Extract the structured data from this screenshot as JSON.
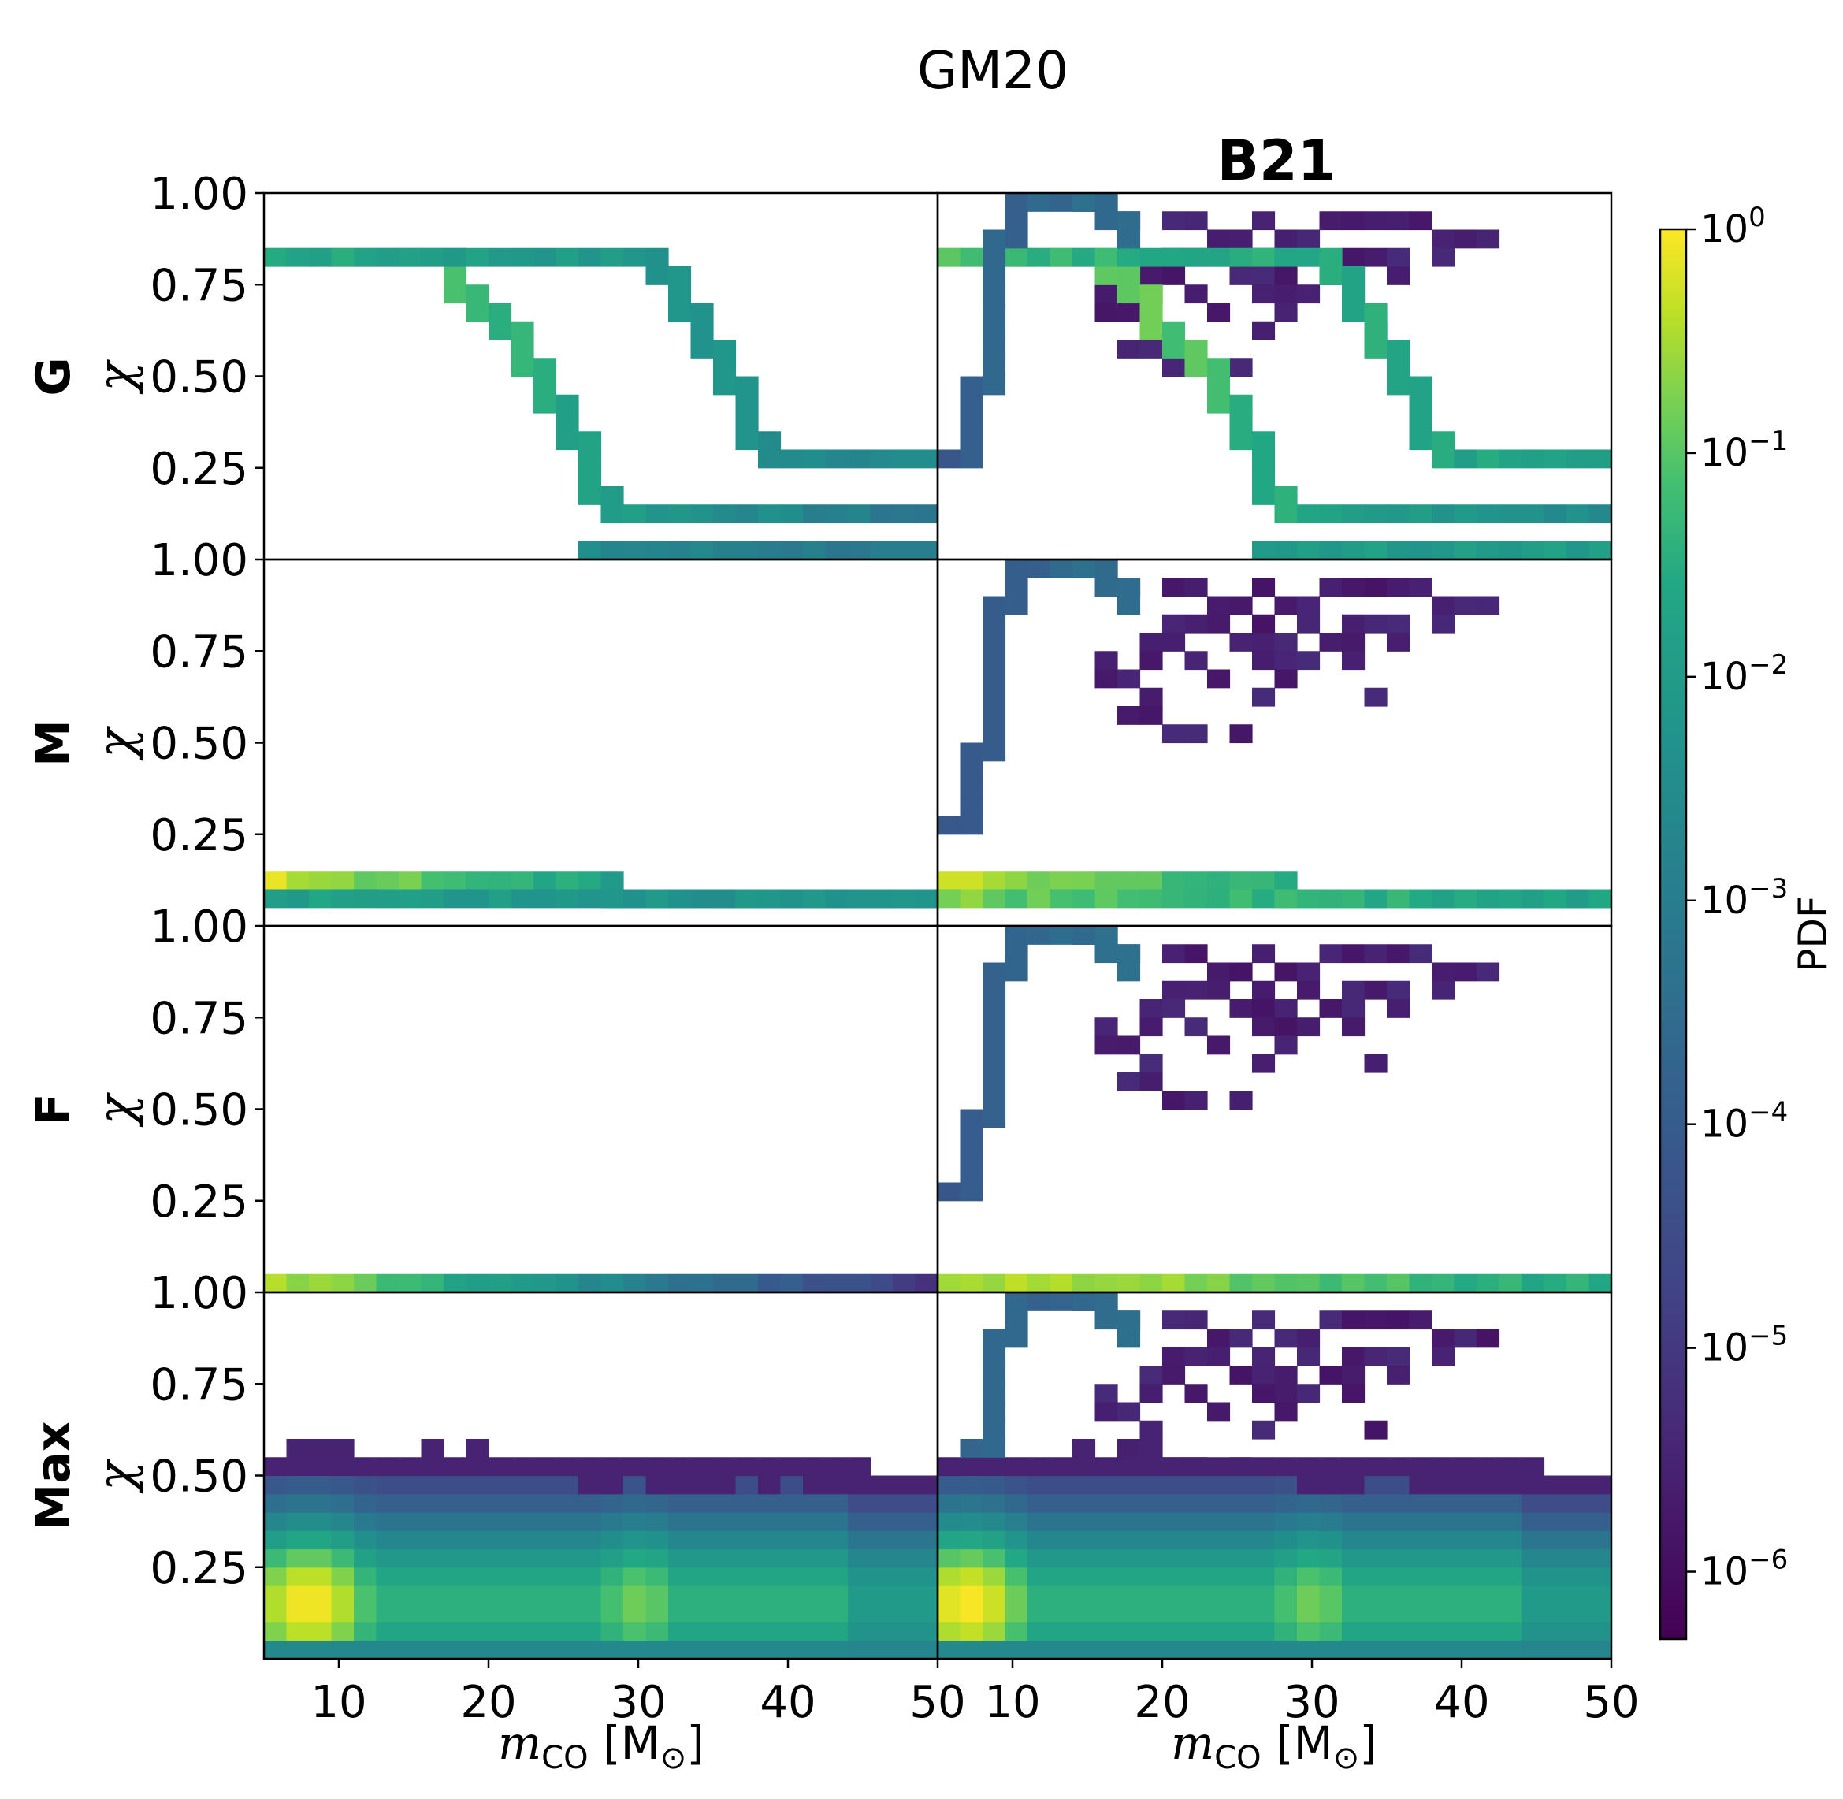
{
  "chart_data": {
    "type": "heatmap",
    "title": "GM20",
    "column_titles": [
      "",
      "B21"
    ],
    "row_labels": [
      "G",
      "M",
      "F",
      "Max"
    ],
    "ylabel": "χ",
    "xlabel": "m_CO [M_⊙]",
    "xlabel_parts": {
      "var": "m",
      "sub": "CO",
      "unit_open": " [M",
      "unit_sub": "⊙",
      "unit_close": "]"
    },
    "xlim": [
      5,
      50
    ],
    "ylim": [
      0,
      1.0
    ],
    "x_ticks_left": [
      "10",
      "20",
      "30",
      "40",
      "50"
    ],
    "x_ticks_right": [
      "10",
      "20",
      "30",
      "40",
      "50"
    ],
    "x_tick_values": [
      10,
      20,
      30,
      40,
      50
    ],
    "y_ticks": [
      "1.00",
      "0.75",
      "0.50",
      "0.25"
    ],
    "y_tick_values": [
      1.0,
      0.75,
      0.5,
      0.25
    ],
    "colorbar": {
      "label": "PDF",
      "scale": "log",
      "range": [
        5e-07,
        1
      ],
      "ticks": [
        {
          "base": "10",
          "exp": "0",
          "value": 1
        },
        {
          "base": "10",
          "exp": "−1",
          "value": 0.1
        },
        {
          "base": "10",
          "exp": "−2",
          "value": 0.01
        },
        {
          "base": "10",
          "exp": "−3",
          "value": 0.001
        },
        {
          "base": "10",
          "exp": "−4",
          "value": 0.0001
        },
        {
          "base": "10",
          "exp": "−5",
          "value": 1e-05
        },
        {
          "base": "10",
          "exp": "−6",
          "value": 1e-06
        }
      ]
    },
    "panels": [
      {
        "row": "G",
        "model": "GM20",
        "tracks": [
          {
            "name": "track-a",
            "points": [
              [
                5,
                0.845
              ],
              [
                16,
                0.845
              ],
              [
                17,
                0.78
              ],
              [
                20,
                0.65
              ],
              [
                23,
                0.48
              ],
              [
                26,
                0.26
              ],
              [
                27,
                0.16
              ],
              [
                28,
                0.12
              ],
              [
                50,
                0.12
              ]
            ],
            "level_start": -0.3,
            "level_end": -3.3
          },
          {
            "name": "track-b",
            "points": [
              [
                5,
                0.845
              ],
              [
                28,
                0.845
              ],
              [
                30,
                0.82
              ],
              [
                32,
                0.72
              ],
              [
                35,
                0.52
              ],
              [
                38,
                0.28
              ],
              [
                50,
                0.28
              ]
            ],
            "level_start": -1.6,
            "level_end": -2.6
          },
          {
            "name": "track-c",
            "points": [
              [
                27,
                0.03
              ],
              [
                50,
                0.03
              ]
            ],
            "level_start": -2.6,
            "level_end": -3.2
          }
        ],
        "blob": null,
        "scatter": false
      },
      {
        "row": "G",
        "model": "B21",
        "tracks": [
          {
            "name": "track-a",
            "points": [
              [
                5,
                0.845
              ],
              [
                11,
                0.845
              ],
              [
                16,
                0.8
              ],
              [
                20,
                0.6
              ],
              [
                23,
                0.48
              ],
              [
                26,
                0.26
              ],
              [
                27,
                0.16
              ],
              [
                28,
                0.12
              ],
              [
                50,
                0.12
              ]
            ],
            "level_start": -0.3,
            "level_end": -2.6
          },
          {
            "name": "track-b",
            "points": [
              [
                5,
                0.845
              ],
              [
                30,
                0.845
              ],
              [
                32,
                0.72
              ],
              [
                35,
                0.52
              ],
              [
                38,
                0.28
              ],
              [
                50,
                0.28
              ]
            ],
            "level_start": -1.2,
            "level_end": -1.8
          },
          {
            "name": "track-c",
            "points": [
              [
                27,
                0.03
              ],
              [
                50,
                0.03
              ]
            ],
            "level_start": -2.0,
            "level_end": -2.0
          },
          {
            "name": "rise",
            "points": [
              [
                5,
                0.2
              ],
              [
                7,
                0.4
              ],
              [
                8,
                0.7
              ],
              [
                9,
                0.9
              ],
              [
                10,
                0.98
              ],
              [
                14,
                0.98
              ],
              [
                17,
                0.88
              ]
            ],
            "level_start": -4.0,
            "level_end": -3.4
          }
        ],
        "blob": null,
        "scatter": true
      },
      {
        "row": "M",
        "model": "GM20",
        "tracks": [
          {
            "name": "track-a",
            "points": [
              [
                5,
                0.105
              ],
              [
                28,
                0.105
              ],
              [
                29,
                0.07
              ],
              [
                50,
                0.07
              ]
            ],
            "level_start": -0.3,
            "level_end": -3.3
          },
          {
            "name": "track-b",
            "points": [
              [
                5,
                0.085
              ],
              [
                50,
                0.085
              ]
            ],
            "level_start": -1.8,
            "level_end": -2.4
          }
        ],
        "blob": null,
        "scatter": false
      },
      {
        "row": "M",
        "model": "B21",
        "tracks": [
          {
            "name": "track-a",
            "points": [
              [
                5,
                0.105
              ],
              [
                28,
                0.105
              ],
              [
                29,
                0.07
              ],
              [
                50,
                0.07
              ]
            ],
            "level_start": -0.3,
            "level_end": -2.7
          },
          {
            "name": "track-b",
            "points": [
              [
                5,
                0.085
              ],
              [
                50,
                0.085
              ]
            ],
            "level_start": -0.8,
            "level_end": -1.8
          },
          {
            "name": "rise",
            "points": [
              [
                5,
                0.2
              ],
              [
                7,
                0.4
              ],
              [
                8,
                0.7
              ],
              [
                9,
                0.9
              ],
              [
                10,
                0.98
              ],
              [
                14,
                0.98
              ],
              [
                17,
                0.88
              ]
            ],
            "level_start": -4.0,
            "level_end": -3.4
          }
        ],
        "blob": null,
        "scatter": true
      },
      {
        "row": "F",
        "model": "GM20",
        "tracks": [
          {
            "name": "track-a",
            "points": [
              [
                5,
                0.02
              ],
              [
                50,
                0.02
              ]
            ],
            "level_start": -0.3,
            "level_end": -5.0
          }
        ],
        "blob": null,
        "scatter": false
      },
      {
        "row": "F",
        "model": "B21",
        "tracks": [
          {
            "name": "track-a",
            "points": [
              [
                5,
                0.02
              ],
              [
                50,
                0.02
              ]
            ],
            "level_start": -0.3,
            "level_end": -1.6
          },
          {
            "name": "rise",
            "points": [
              [
                5,
                0.2
              ],
              [
                7,
                0.4
              ],
              [
                8,
                0.7
              ],
              [
                9,
                0.9
              ],
              [
                10,
                0.98
              ],
              [
                14,
                0.98
              ],
              [
                17,
                0.88
              ]
            ],
            "level_start": -4.0,
            "level_end": -3.4
          }
        ],
        "blob": null,
        "scatter": true
      },
      {
        "row": "Max",
        "model": "GM20",
        "tracks": [],
        "blob": {
          "chi_top": 0.56,
          "peak_x": 8,
          "peak_chi": 0.15,
          "second_peak_x": 30
        },
        "scatter": false
      },
      {
        "row": "Max",
        "model": "B21",
        "tracks": [
          {
            "name": "rise",
            "points": [
              [
                7,
                0.5
              ],
              [
                8,
                0.7
              ],
              [
                9,
                0.9
              ],
              [
                10,
                0.98
              ],
              [
                14,
                0.98
              ],
              [
                17,
                0.88
              ]
            ],
            "level_start": -3.8,
            "level_end": -3.4
          }
        ],
        "blob": {
          "chi_top": 0.56,
          "peak_x": 7,
          "peak_chi": 0.15,
          "second_peak_x": 30
        },
        "scatter": true
      }
    ]
  }
}
